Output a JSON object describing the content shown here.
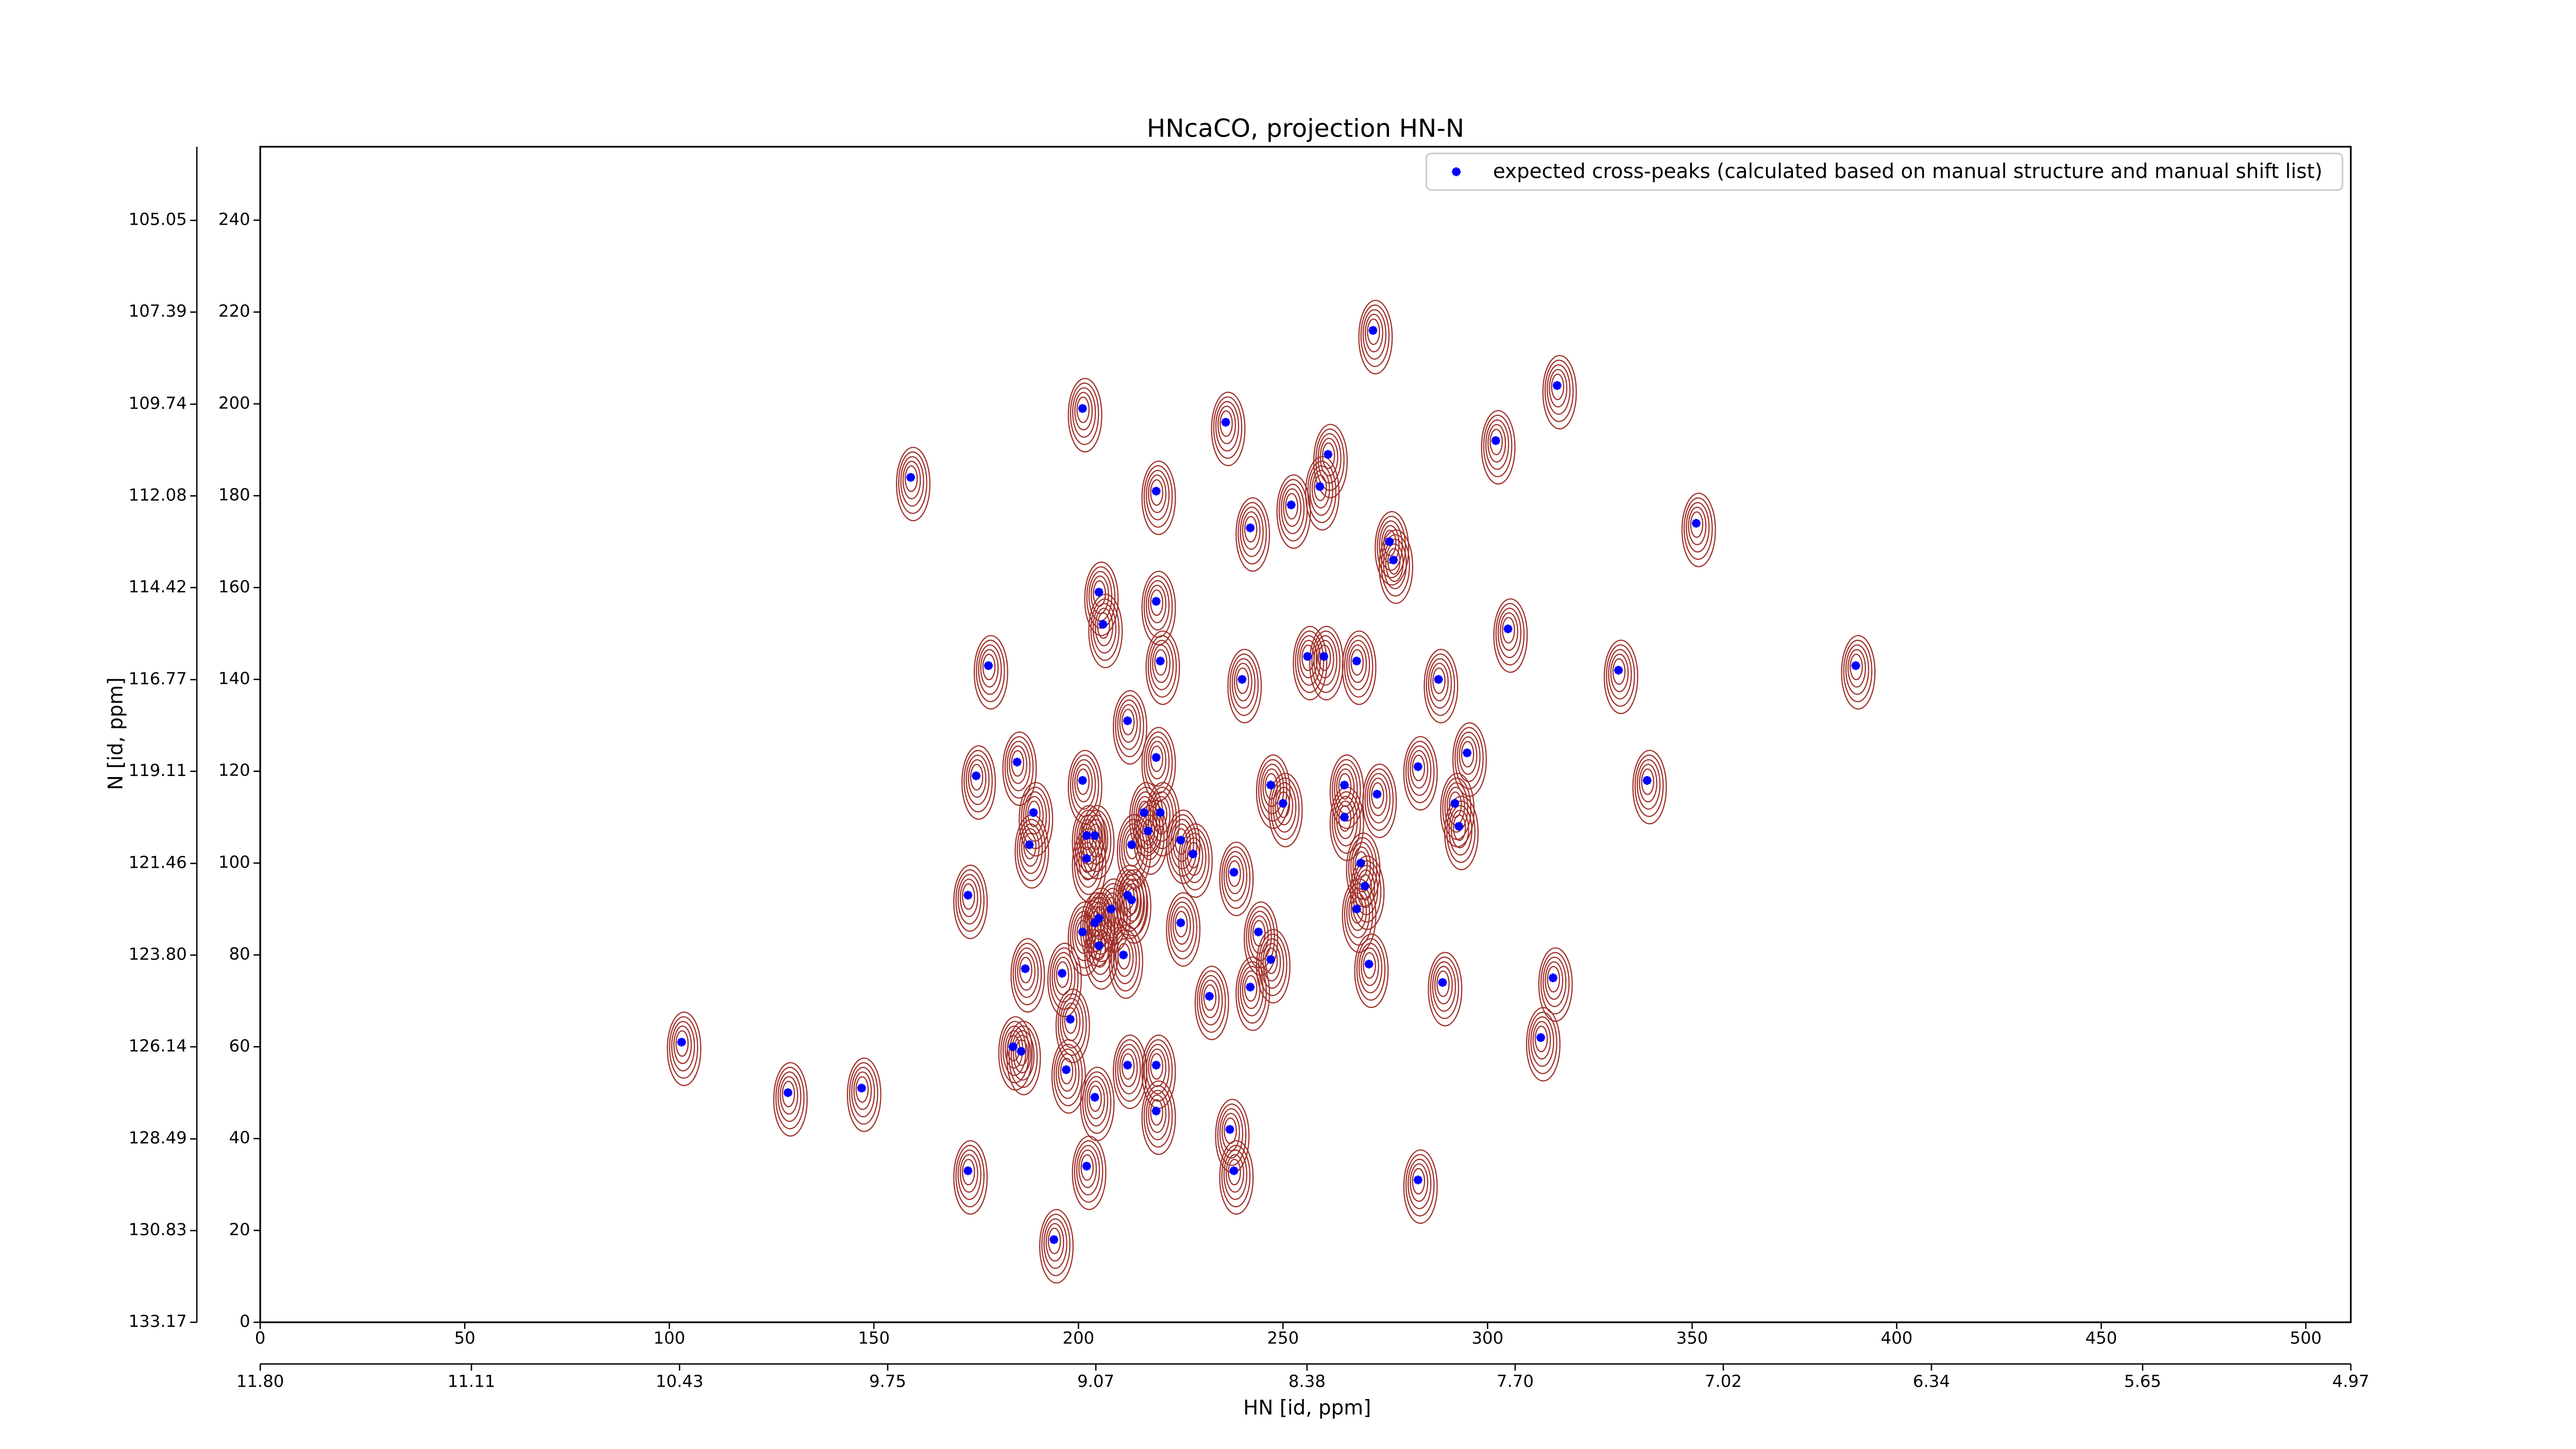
{
  "chart_data": {
    "type": "scatter",
    "title": "HNcaCO, projection HN-N",
    "xlabel": "HN [id, ppm]",
    "ylabel": "N [id, ppm]",
    "xlim": [
      0,
      511
    ],
    "ylim": [
      0,
      256
    ],
    "xticks": [
      0,
      50,
      100,
      150,
      200,
      250,
      300,
      350,
      400,
      450,
      500
    ],
    "yticks": [
      0,
      20,
      40,
      60,
      80,
      100,
      120,
      140,
      160,
      180,
      200,
      220,
      240
    ],
    "x2lim": [
      11.8,
      4.97
    ],
    "x2ticks": [
      {
        "value": 11.8,
        "label": "11.80"
      },
      11.11,
      10.43,
      9.75,
      9.07,
      8.38,
      {
        "value": 7.7,
        "label": "7.70"
      },
      7.02,
      6.34,
      5.65,
      4.97
    ],
    "y2lim": [
      133.17,
      103.17
    ],
    "y2ticks": [
      133.17,
      130.83,
      128.49,
      126.14,
      {
        "value": 123.8,
        "label": "123.80"
      },
      121.46,
      119.11,
      116.77,
      114.42,
      112.08,
      109.74,
      107.39,
      105.05
    ],
    "legend": "upper right",
    "contour_color": "#a0302a",
    "series": [
      {
        "name": "expected cross-peaks (calculated based on manual structure and manual shift list)",
        "color": "#0000ff",
        "x": [
          272,
          317,
          201,
          236,
          302,
          261,
          159,
          259,
          219,
          252,
          351,
          242,
          276,
          277,
          205,
          219,
          206,
          305,
          256,
          260,
          268,
          220,
          178,
          390,
          332,
          240,
          288,
          212,
          295,
          219,
          283,
          185,
          175,
          201,
          247,
          339,
          265,
          273,
          250,
          292,
          189,
          216,
          220,
          265,
          293,
          217,
          202,
          204,
          225,
          188,
          213,
          228,
          202,
          269,
          238,
          270,
          212,
          213,
          173,
          208,
          268,
          205,
          204,
          225,
          201,
          244,
          205,
          211,
          247,
          187,
          271,
          196,
          316,
          289,
          242,
          232,
          198,
          103,
          313,
          184,
          186,
          212,
          219,
          197,
          129,
          147,
          204,
          219,
          237,
          173,
          202,
          238,
          283,
          194
        ],
        "values": [
          216,
          204,
          199,
          196,
          192,
          189,
          184,
          182,
          181,
          178,
          174,
          173,
          170,
          166,
          159,
          157,
          152,
          151,
          145,
          145,
          144,
          144,
          143,
          143,
          142,
          140,
          140,
          131,
          124,
          123,
          121,
          122,
          119,
          118,
          117,
          118,
          117,
          115,
          113,
          113,
          111,
          111,
          111,
          110,
          108,
          107,
          106,
          106,
          105,
          104,
          104,
          102,
          101,
          100,
          98,
          95,
          93,
          92,
          93,
          90,
          90,
          88,
          87,
          87,
          85,
          85,
          82,
          80,
          79,
          77,
          78,
          76,
          75,
          74,
          73,
          71,
          66,
          61,
          62,
          60,
          59,
          56,
          56,
          55,
          50,
          51,
          49,
          46,
          42,
          33,
          34,
          33,
          31,
          18
        ]
      }
    ]
  }
}
